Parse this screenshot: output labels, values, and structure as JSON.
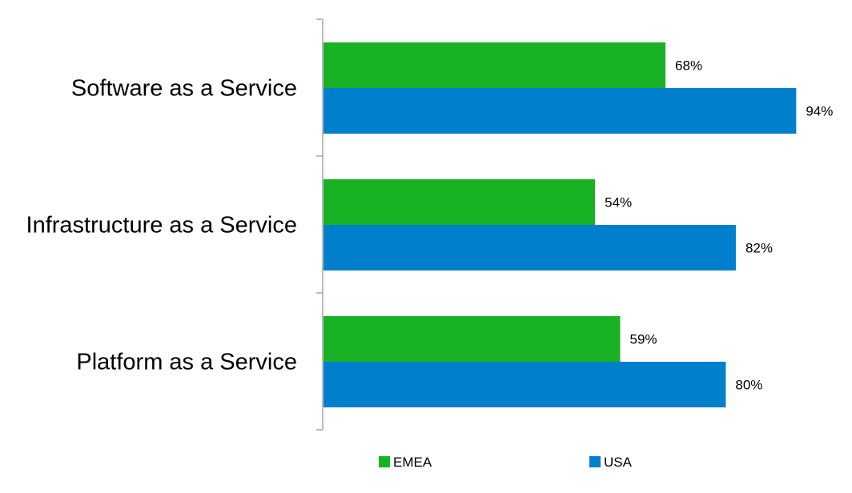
{
  "chart_data": {
    "type": "bar",
    "orientation": "horizontal",
    "categories": [
      "Software as a Service",
      "Infrastructure as a Service",
      "Platform as a Service"
    ],
    "series": [
      {
        "name": "EMEA",
        "values": [
          68,
          54,
          59
        ],
        "labels": [
          "68%",
          "54%",
          "59%"
        ],
        "color": "#19b224"
      },
      {
        "name": "USA",
        "values": [
          94,
          82,
          80
        ],
        "labels": [
          "94%",
          "82%",
          "80%"
        ],
        "color": "#0080cc"
      }
    ],
    "value_unit": "%",
    "xlim": [
      0,
      100
    ],
    "grid": false,
    "legend_position": "bottom",
    "title": "",
    "xlabel": "",
    "ylabel": ""
  }
}
